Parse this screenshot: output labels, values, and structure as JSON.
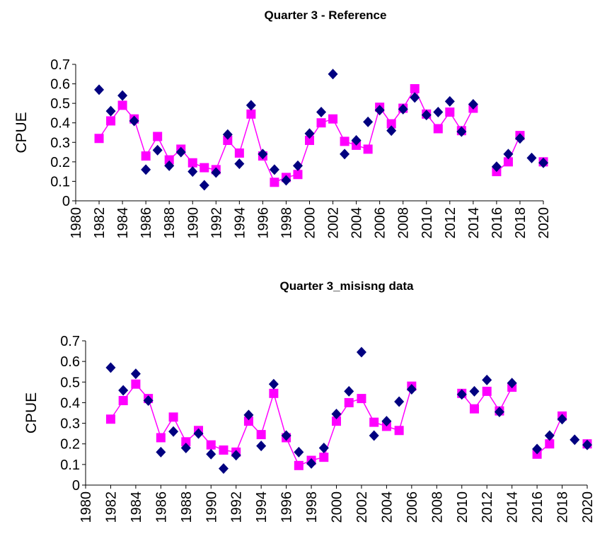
{
  "chart_data": [
    {
      "type": "line",
      "title": "Quarter 3 - Reference",
      "y_label": "CPUE",
      "x": [
        1982,
        1983,
        1984,
        1985,
        1986,
        1987,
        1988,
        1989,
        1990,
        1991,
        1992,
        1993,
        1994,
        1995,
        1996,
        1997,
        1998,
        1999,
        2000,
        2001,
        2002,
        2003,
        2004,
        2005,
        2006,
        2007,
        2008,
        2009,
        2010,
        2011,
        2012,
        2013,
        2014,
        2015,
        2016,
        2017,
        2018,
        2019,
        2020
      ],
      "series": [
        {
          "type": "line",
          "marker": "square",
          "color": "#ff00ff",
          "values": [
            0.32,
            0.41,
            0.49,
            0.42,
            0.23,
            0.33,
            0.21,
            0.265,
            0.195,
            0.17,
            0.16,
            0.31,
            0.245,
            0.445,
            0.23,
            0.095,
            0.12,
            0.135,
            0.31,
            0.4,
            0.42,
            0.305,
            0.285,
            0.265,
            0.48,
            0.395,
            0.475,
            0.575,
            0.445,
            0.37,
            0.455,
            0.36,
            0.475,
            null,
            0.15,
            0.2,
            0.335,
            null,
            0.2
          ]
        },
        {
          "type": "scatter",
          "marker": "diamond",
          "color": "#000080",
          "values": [
            0.57,
            0.46,
            0.54,
            0.41,
            0.16,
            0.26,
            0.18,
            0.25,
            0.15,
            0.08,
            0.145,
            0.34,
            0.19,
            0.49,
            0.24,
            0.16,
            0.105,
            0.18,
            0.345,
            0.455,
            0.65,
            0.24,
            0.31,
            0.405,
            0.465,
            0.36,
            0.47,
            0.53,
            0.44,
            0.455,
            0.51,
            0.355,
            0.495,
            null,
            0.175,
            0.24,
            0.32,
            0.22,
            0.195
          ]
        }
      ],
      "xlim": [
        1980,
        2020
      ],
      "xticks": [
        1980,
        1982,
        1984,
        1986,
        1988,
        1990,
        1992,
        1994,
        1996,
        1998,
        2000,
        2002,
        2004,
        2006,
        2008,
        2010,
        2012,
        2014,
        2016,
        2018,
        2020
      ],
      "ylim": [
        0,
        0.7
      ],
      "yticks": [
        0,
        0.1,
        0.2,
        0.3,
        0.4,
        0.5,
        0.6,
        0.7
      ]
    },
    {
      "type": "line",
      "title": "Quarter 3_misisng data",
      "y_label": "CPUE",
      "x": [
        1982,
        1983,
        1984,
        1985,
        1986,
        1987,
        1988,
        1989,
        1990,
        1991,
        1992,
        1993,
        1994,
        1995,
        1996,
        1997,
        1998,
        1999,
        2000,
        2001,
        2002,
        2003,
        2004,
        2005,
        2006,
        2007,
        2008,
        2009,
        2010,
        2011,
        2012,
        2013,
        2014,
        2015,
        2016,
        2017,
        2018,
        2019,
        2020
      ],
      "series": [
        {
          "type": "line",
          "marker": "square",
          "color": "#ff00ff",
          "values": [
            0.32,
            0.41,
            0.49,
            0.42,
            0.23,
            0.33,
            0.21,
            0.265,
            0.195,
            0.17,
            0.16,
            0.31,
            0.245,
            0.445,
            0.23,
            0.095,
            0.12,
            0.135,
            0.31,
            0.4,
            0.42,
            0.305,
            0.285,
            0.265,
            0.48,
            null,
            null,
            null,
            0.445,
            0.37,
            0.455,
            0.36,
            0.475,
            null,
            0.15,
            0.2,
            0.335,
            null,
            0.2
          ]
        },
        {
          "type": "scatter",
          "marker": "diamond",
          "color": "#000080",
          "values": [
            0.57,
            0.46,
            0.54,
            0.41,
            0.16,
            0.26,
            0.18,
            0.25,
            0.15,
            0.08,
            0.145,
            0.34,
            0.19,
            0.49,
            0.24,
            0.16,
            0.105,
            0.18,
            0.345,
            0.455,
            0.645,
            0.24,
            0.31,
            0.405,
            0.465,
            null,
            null,
            null,
            0.44,
            0.455,
            0.51,
            0.355,
            0.495,
            null,
            0.175,
            0.24,
            0.32,
            0.22,
            0.195
          ]
        }
      ],
      "xlim": [
        1980,
        2020
      ],
      "xticks": [
        1980,
        1982,
        1984,
        1986,
        1988,
        1990,
        1992,
        1994,
        1996,
        1998,
        2000,
        2002,
        2004,
        2006,
        2008,
        2010,
        2012,
        2014,
        2016,
        2018,
        2020
      ],
      "ylim": [
        0,
        0.7
      ],
      "yticks": [
        0,
        0.1,
        0.2,
        0.3,
        0.4,
        0.5,
        0.6,
        0.7
      ]
    }
  ]
}
